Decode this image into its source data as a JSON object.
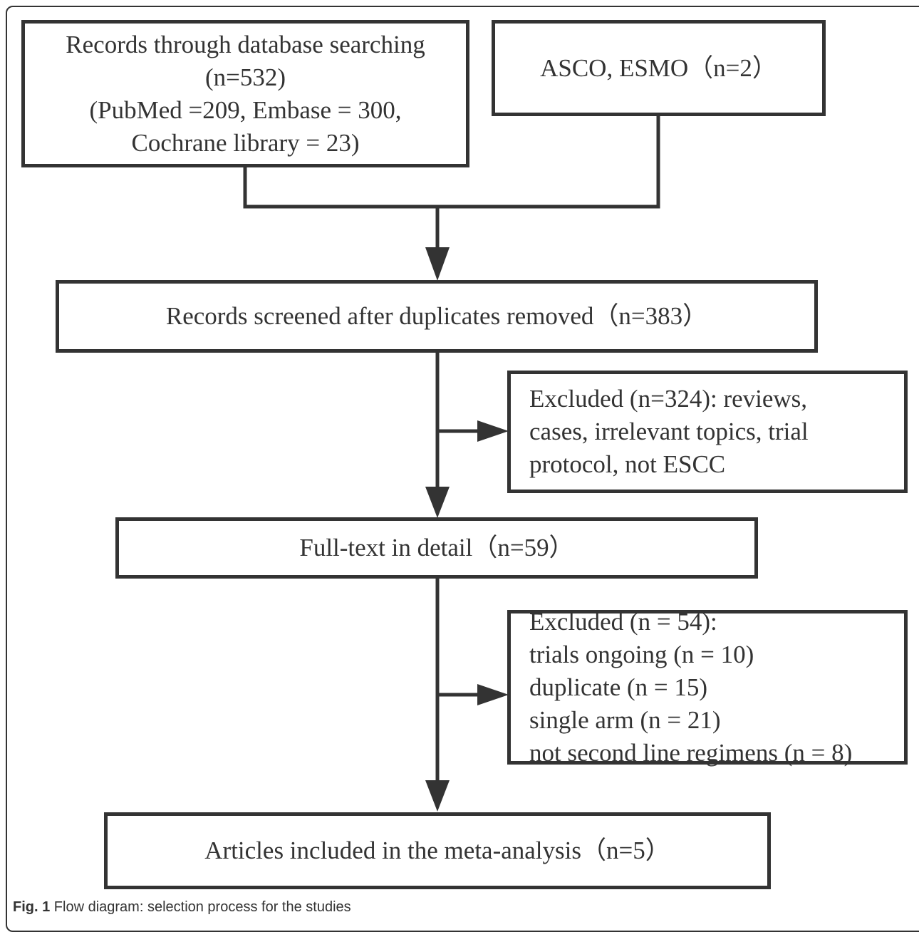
{
  "boxes": {
    "database_search": {
      "lines": [
        "Records through database searching",
        "(n=532)",
        "(PubMed =209, Embase = 300,",
        "Cochrane library = 23)"
      ]
    },
    "asco_esmo": {
      "lines": [
        "ASCO, ESMO（n=2）"
      ]
    },
    "screened": {
      "lines": [
        "Records screened after duplicates removed（n=383）"
      ]
    },
    "excluded_1": {
      "lines": [
        "Excluded (n=324): reviews,",
        "cases, irrelevant topics, trial",
        "protocol, not ESCC"
      ]
    },
    "full_text": {
      "lines": [
        "Full-text in detail（n=59）"
      ]
    },
    "excluded_2": {
      "lines": [
        "Excluded (n = 54):",
        "trials ongoing (n = 10)",
        "duplicate (n = 15)",
        "single arm (n = 21)",
        "not second line regimens (n = 8)"
      ]
    },
    "included": {
      "lines": [
        "Articles included in the meta-analysis（n=5）"
      ]
    }
  },
  "caption": {
    "label": "Fig. 1",
    "text": " Flow diagram: selection process for the studies"
  },
  "colors": {
    "stroke": "#333333",
    "background": "#ffffff"
  }
}
